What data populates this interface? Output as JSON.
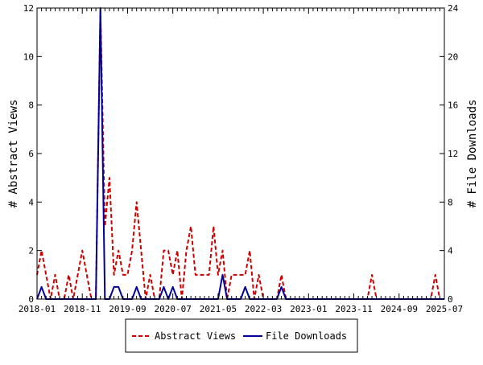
{
  "chart_data": {
    "type": "line",
    "title": "",
    "xlabel": "",
    "ylabel_left": "# Abstract Views",
    "ylabel_right": "# File Downloads",
    "ylim_left": [
      0,
      12
    ],
    "ylim_right": [
      0,
      24
    ],
    "yticks_left": [
      "0",
      "2",
      "4",
      "6",
      "8",
      "10",
      "12"
    ],
    "yticks_right": [
      "0",
      "4",
      "8",
      "12",
      "16",
      "20",
      "24"
    ],
    "xticks": [
      "2018-01",
      "2018-11",
      "2019-09",
      "2020-07",
      "2021-05",
      "2022-03",
      "2023-01",
      "2023-11",
      "2024-09",
      "2025-07"
    ],
    "grid": false,
    "legend_position": "bottom",
    "x": [
      "2018-01",
      "2018-02",
      "2018-03",
      "2018-04",
      "2018-05",
      "2018-06",
      "2018-07",
      "2018-08",
      "2018-09",
      "2018-10",
      "2018-11",
      "2018-12",
      "2019-01",
      "2019-02",
      "2019-03",
      "2019-04",
      "2019-05",
      "2019-06",
      "2019-07",
      "2019-08",
      "2019-09",
      "2019-10",
      "2019-11",
      "2019-12",
      "2020-01",
      "2020-02",
      "2020-03",
      "2020-04",
      "2020-05",
      "2020-06",
      "2020-07",
      "2020-08",
      "2020-09",
      "2020-10",
      "2020-11",
      "2020-12",
      "2021-01",
      "2021-02",
      "2021-03",
      "2021-04",
      "2021-05",
      "2021-06",
      "2021-07",
      "2021-08",
      "2021-09",
      "2021-10",
      "2021-11",
      "2021-12",
      "2022-01",
      "2022-02",
      "2022-03",
      "2022-04",
      "2022-05",
      "2022-06",
      "2022-07",
      "2022-08",
      "2022-09",
      "2022-10",
      "2022-11",
      "2022-12",
      "2023-01",
      "2023-02",
      "2023-03",
      "2023-04",
      "2023-05",
      "2023-06",
      "2023-07",
      "2023-08",
      "2023-09",
      "2023-10",
      "2023-11",
      "2023-12",
      "2024-01",
      "2024-02",
      "2024-03",
      "2024-04",
      "2024-05",
      "2024-06",
      "2024-07",
      "2024-08",
      "2024-09",
      "2024-10",
      "2024-11",
      "2024-12",
      "2025-01",
      "2025-02",
      "2025-03",
      "2025-04",
      "2025-05",
      "2025-06",
      "2025-07"
    ],
    "series": [
      {
        "name": "Abstract Views",
        "axis": "left",
        "color": "#cc0000",
        "dash": "dashed",
        "values": [
          1,
          2,
          1,
          0,
          1,
          0,
          0,
          1,
          0,
          1,
          2,
          1,
          0,
          0,
          12,
          3,
          5,
          1,
          2,
          1,
          1,
          2,
          4,
          2,
          0,
          1,
          0,
          0,
          2,
          2,
          1,
          2,
          0,
          2,
          3,
          1,
          1,
          1,
          1,
          3,
          1,
          2,
          0,
          1,
          1,
          1,
          1,
          2,
          0,
          1,
          0,
          0,
          0,
          0,
          1,
          0,
          0,
          0,
          0,
          0,
          0,
          0,
          0,
          0,
          0,
          0,
          0,
          0,
          0,
          0,
          0,
          0,
          0,
          0,
          1,
          0,
          0,
          0,
          0,
          0,
          0,
          0,
          0,
          0,
          0,
          0,
          0,
          0,
          1,
          0,
          0
        ]
      },
      {
        "name": "File Downloads",
        "axis": "right",
        "color": "#000099",
        "dash": "solid",
        "values": [
          0,
          1,
          0,
          0,
          0,
          0,
          0,
          0,
          0,
          0,
          0,
          0,
          0,
          0,
          24,
          0,
          0,
          1,
          1,
          0,
          0,
          0,
          1,
          0,
          0,
          0,
          0,
          0,
          1,
          0,
          1,
          0,
          0,
          0,
          0,
          0,
          0,
          0,
          0,
          0,
          0,
          2,
          0,
          0,
          0,
          0,
          1,
          0,
          0,
          0,
          0,
          0,
          0,
          0,
          1,
          0,
          0,
          0,
          0,
          0,
          0,
          0,
          0,
          0,
          0,
          0,
          0,
          0,
          0,
          0,
          0,
          0,
          0,
          0,
          0,
          0,
          0,
          0,
          0,
          0,
          0,
          0,
          0,
          0,
          0,
          0,
          0,
          0,
          0,
          0,
          0
        ]
      }
    ]
  }
}
